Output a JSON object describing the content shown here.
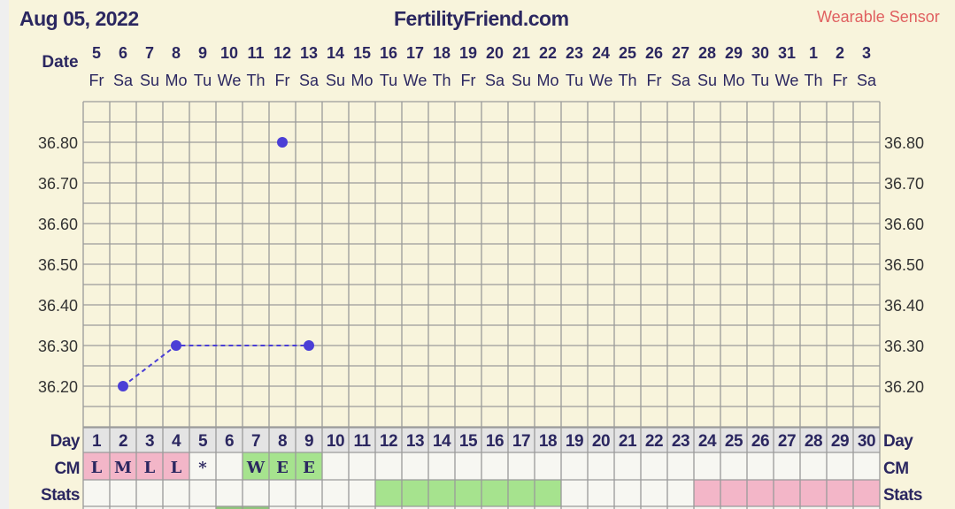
{
  "header": {
    "title": "Aug 05, 2022",
    "site": "FertilityFriend.com",
    "sensor": "Wearable Sensor"
  },
  "chart_data": {
    "type": "line",
    "row_labels": {
      "date": "Date",
      "day": "Day",
      "cm": "CM",
      "stats": "Stats"
    },
    "dates": [
      "5",
      "6",
      "7",
      "8",
      "9",
      "10",
      "11",
      "12",
      "13",
      "14",
      "15",
      "16",
      "17",
      "18",
      "19",
      "20",
      "21",
      "22",
      "23",
      "24",
      "25",
      "26",
      "27",
      "28",
      "29",
      "30",
      "31",
      "1",
      "2",
      "3"
    ],
    "weekdays": [
      "Fr",
      "Sa",
      "Su",
      "Mo",
      "Tu",
      "We",
      "Th",
      "Fr",
      "Sa",
      "Su",
      "Mo",
      "Tu",
      "We",
      "Th",
      "Fr",
      "Sa",
      "Su",
      "Mo",
      "Tu",
      "We",
      "Th",
      "Fr",
      "Sa",
      "Su",
      "Mo",
      "Tu",
      "We",
      "Th",
      "Fr",
      "Sa"
    ],
    "days": [
      1,
      2,
      3,
      4,
      5,
      6,
      7,
      8,
      9,
      10,
      11,
      12,
      13,
      14,
      15,
      16,
      17,
      18,
      19,
      20,
      21,
      22,
      23,
      24,
      25,
      26,
      27,
      28,
      29,
      30
    ],
    "yticks": [
      "36.80",
      "36.70",
      "36.60",
      "36.50",
      "36.40",
      "36.30",
      "36.20"
    ],
    "ylim": [
      36.1,
      36.9
    ],
    "temperatures": [
      {
        "day": 2,
        "value": 36.2,
        "connected": true
      },
      {
        "day": 4,
        "value": 36.3,
        "connected": true
      },
      {
        "day": 8,
        "value": 36.8,
        "connected": false
      },
      {
        "day": 9,
        "value": 36.3,
        "connected": true
      }
    ],
    "cm": [
      {
        "day": 1,
        "value": "L",
        "color": "pink"
      },
      {
        "day": 2,
        "value": "M",
        "color": "pink"
      },
      {
        "day": 3,
        "value": "L",
        "color": "pink"
      },
      {
        "day": 4,
        "value": "L",
        "color": "pink"
      },
      {
        "day": 5,
        "value": "*",
        "color": "white"
      },
      {
        "day": 7,
        "value": "W",
        "color": "green"
      },
      {
        "day": 8,
        "value": "E",
        "color": "green"
      },
      {
        "day": 9,
        "value": "E",
        "color": "green"
      }
    ],
    "stats": {
      "green_days": [
        12,
        13,
        14,
        15,
        16,
        17,
        18
      ],
      "pink_days": [
        24,
        25,
        26,
        27,
        28,
        29,
        30
      ]
    },
    "colors": {
      "point": "#4b3fd6",
      "pink": "#f3b6c8",
      "green": "#a6e38e",
      "grid": "#9a9a9a",
      "header_row": "#e4e4e4",
      "cell": "#f7f7f2"
    }
  }
}
